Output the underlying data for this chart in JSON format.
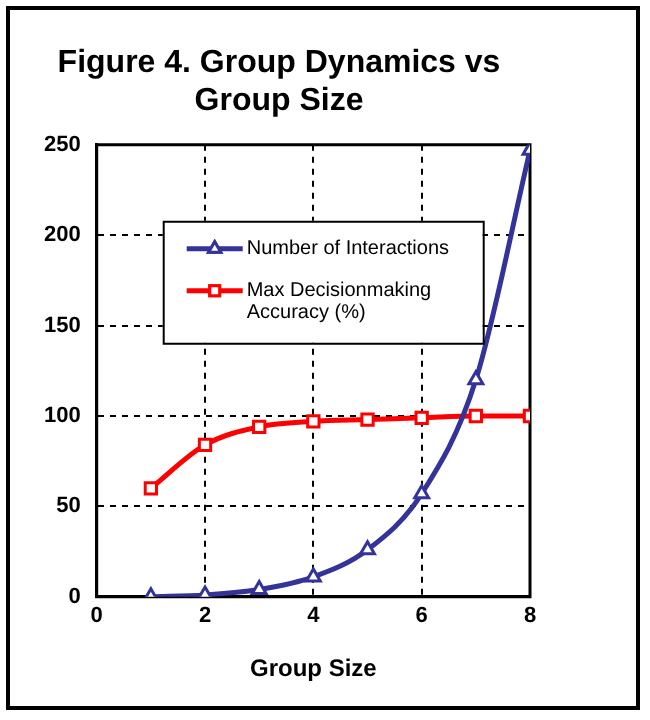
{
  "chart_data": {
    "type": "line",
    "title": "Figure 4. Group Dynamics vs Group Size",
    "xlabel": "Group Size",
    "x": [
      1,
      2,
      3,
      4,
      5,
      6,
      7,
      8
    ],
    "series": [
      {
        "name": "Number of Interactions",
        "color": "#333399",
        "marker": "triangle",
        "values": [
          0,
          1,
          4,
          11,
          26,
          57,
          120,
          247
        ]
      },
      {
        "name": "Max Decisionmaking Accuracy (%)",
        "color": "#ff0000",
        "marker": "square",
        "values": [
          60,
          84,
          94,
          97,
          98,
          99,
          100,
          100
        ]
      }
    ],
    "xlim": [
      0,
      8
    ],
    "xticks": [
      0,
      2,
      4,
      6,
      8
    ],
    "ylim": [
      0,
      250
    ],
    "yticks": [
      0,
      50,
      100,
      150,
      200,
      250
    ],
    "grid": true,
    "line_style": "solid",
    "legend": "top left"
  }
}
